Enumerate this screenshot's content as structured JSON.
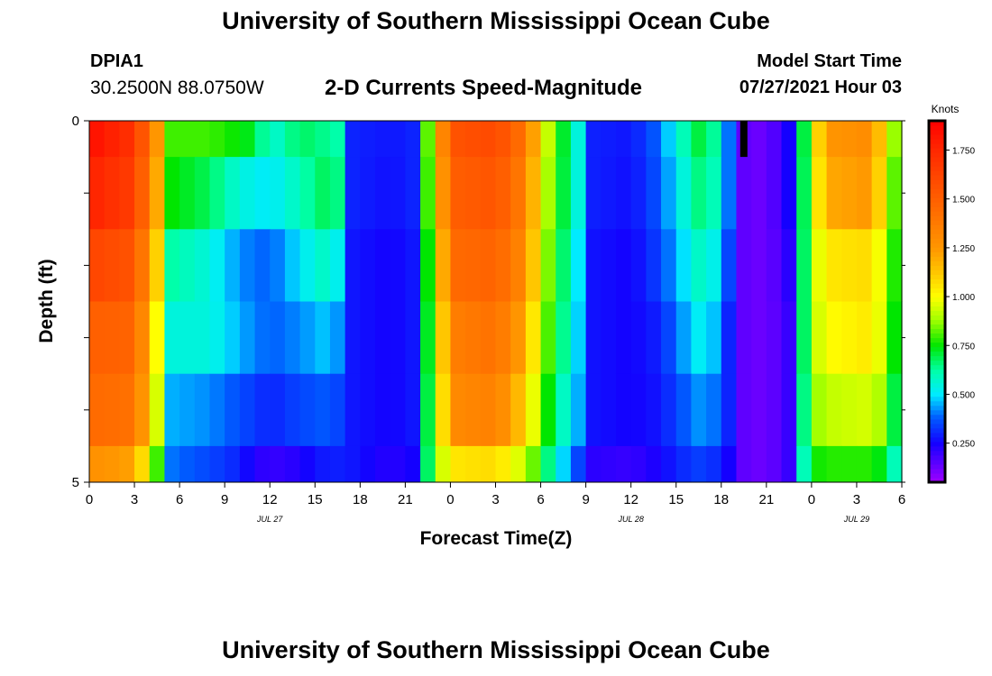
{
  "header": {
    "title": "University of Southern Mississippi Ocean Cube",
    "station_id": "DPIA1",
    "coords": "30.2500N  88.0750W",
    "subtitle": "2-D Currents Speed-Magnitude",
    "start_label": "Model Start Time",
    "start_value": "07/27/2021 Hour 03"
  },
  "footer": {
    "title": "University of Southern Mississippi Ocean Cube"
  },
  "chart_data": {
    "type": "heatmap",
    "title": "2-D Currents Speed-Magnitude",
    "xlabel": "Forecast Time(Z)",
    "ylabel": "Depth (ft)",
    "x_unit": "hours from Jul 27 00Z",
    "x_range": [
      0,
      54
    ],
    "y_range": [
      0,
      5
    ],
    "x_ticks": [
      0,
      3,
      6,
      9,
      12,
      15,
      18,
      21,
      24,
      27,
      30,
      33,
      36,
      39,
      42,
      45,
      48,
      51,
      54
    ],
    "x_tick_labels": [
      "0",
      "3",
      "6",
      "9",
      "12",
      "15",
      "18",
      "21",
      "0",
      "3",
      "6",
      "9",
      "12",
      "15",
      "18",
      "21",
      "0",
      "3",
      "6"
    ],
    "y_ticks": [
      0,
      5
    ],
    "date_labels": [
      {
        "hour": 12,
        "label": "JUL 27"
      },
      {
        "hour": 36,
        "label": "JUL 28"
      },
      {
        "hour": 51,
        "label": "JUL 29"
      }
    ],
    "colorbar": {
      "label": "Knots",
      "range": [
        0.05,
        1.9
      ],
      "ticks": [
        "0.250",
        "0.500",
        "0.750",
        "1.000",
        "1.250",
        "1.500",
        "1.750"
      ],
      "tick_values": [
        0.25,
        0.5,
        0.75,
        1.0,
        1.25,
        1.5,
        1.75
      ]
    },
    "rows": [
      {
        "depth": [
          0.0,
          0.5
        ],
        "key": [
          [
            0,
            1.85
          ],
          [
            3,
            1.7
          ],
          [
            4.5,
            1.25
          ],
          [
            5.5,
            0.8
          ],
          [
            8,
            0.8
          ],
          [
            11,
            0.72
          ],
          [
            12,
            0.55
          ],
          [
            14,
            0.68
          ],
          [
            16.5,
            0.62
          ],
          [
            17.5,
            0.3
          ],
          [
            20,
            0.28
          ],
          [
            21.5,
            0.3
          ],
          [
            22,
            0.55
          ],
          [
            23,
            1.1
          ],
          [
            24,
            1.55
          ],
          [
            27,
            1.6
          ],
          [
            29,
            1.4
          ],
          [
            30,
            1.05
          ],
          [
            31,
            0.8
          ],
          [
            32.5,
            0.55
          ],
          [
            33,
            0.3
          ],
          [
            36,
            0.28
          ],
          [
            38,
            0.4
          ],
          [
            39,
            0.55
          ],
          [
            41,
            0.75
          ],
          [
            42.5,
            0.4
          ],
          [
            43,
            0.15
          ],
          [
            45,
            0.12
          ],
          [
            46.5,
            0.25
          ],
          [
            47,
            0.45
          ],
          [
            48,
            0.95
          ],
          [
            49,
            1.25
          ],
          [
            52,
            1.3
          ],
          [
            53,
            1.0
          ],
          [
            54,
            0.75
          ]
        ]
      },
      {
        "depth": [
          0.5,
          1.5
        ],
        "key": [
          [
            0,
            1.78
          ],
          [
            3,
            1.65
          ],
          [
            4.5,
            1.2
          ],
          [
            5.5,
            0.75
          ],
          [
            8,
            0.68
          ],
          [
            10,
            0.55
          ],
          [
            12,
            0.5
          ],
          [
            14,
            0.6
          ],
          [
            16,
            0.7
          ],
          [
            17,
            0.6
          ],
          [
            17.5,
            0.3
          ],
          [
            20,
            0.27
          ],
          [
            21.5,
            0.3
          ],
          [
            22,
            0.55
          ],
          [
            23,
            1.05
          ],
          [
            24,
            1.5
          ],
          [
            27,
            1.55
          ],
          [
            29,
            1.35
          ],
          [
            30,
            1.0
          ],
          [
            31,
            0.78
          ],
          [
            32.5,
            0.55
          ],
          [
            33,
            0.3
          ],
          [
            36,
            0.27
          ],
          [
            38,
            0.38
          ],
          [
            39,
            0.5
          ],
          [
            41,
            0.7
          ],
          [
            42.5,
            0.4
          ],
          [
            43,
            0.15
          ],
          [
            45,
            0.12
          ],
          [
            46.5,
            0.25
          ],
          [
            47,
            0.45
          ],
          [
            48,
            0.92
          ],
          [
            49,
            1.2
          ],
          [
            52,
            1.25
          ],
          [
            53,
            0.95
          ],
          [
            54,
            0.7
          ]
        ]
      },
      {
        "depth": [
          1.5,
          2.5
        ],
        "key": [
          [
            0,
            1.62
          ],
          [
            3,
            1.55
          ],
          [
            4.5,
            1.1
          ],
          [
            5.5,
            0.62
          ],
          [
            8,
            0.55
          ],
          [
            10,
            0.42
          ],
          [
            12,
            0.38
          ],
          [
            14,
            0.5
          ],
          [
            16,
            0.6
          ],
          [
            17,
            0.45
          ],
          [
            17.5,
            0.28
          ],
          [
            20,
            0.25
          ],
          [
            21.5,
            0.28
          ],
          [
            22,
            0.55
          ],
          [
            23,
            0.95
          ],
          [
            24,
            1.45
          ],
          [
            27,
            1.48
          ],
          [
            29,
            1.3
          ],
          [
            30,
            0.95
          ],
          [
            31,
            0.75
          ],
          [
            32.5,
            0.5
          ],
          [
            33,
            0.28
          ],
          [
            36,
            0.25
          ],
          [
            38,
            0.35
          ],
          [
            39,
            0.45
          ],
          [
            41,
            0.62
          ],
          [
            42.5,
            0.35
          ],
          [
            43,
            0.15
          ],
          [
            45,
            0.12
          ],
          [
            46.5,
            0.22
          ],
          [
            47,
            0.45
          ],
          [
            48,
            0.9
          ],
          [
            49,
            1.05
          ],
          [
            52,
            1.08
          ],
          [
            53,
            0.9
          ],
          [
            54,
            0.65
          ]
        ]
      },
      {
        "depth": [
          2.5,
          3.5
        ],
        "key": [
          [
            0,
            1.5
          ],
          [
            3,
            1.48
          ],
          [
            4.5,
            1.0
          ],
          [
            5.5,
            0.55
          ],
          [
            8,
            0.55
          ],
          [
            10,
            0.45
          ],
          [
            12,
            0.38
          ],
          [
            14,
            0.42
          ],
          [
            16,
            0.48
          ],
          [
            17,
            0.38
          ],
          [
            17.5,
            0.28
          ],
          [
            20,
            0.25
          ],
          [
            21.5,
            0.28
          ],
          [
            22,
            0.55
          ],
          [
            23,
            0.9
          ],
          [
            24,
            1.35
          ],
          [
            27,
            1.42
          ],
          [
            29,
            1.2
          ],
          [
            30,
            0.9
          ],
          [
            31,
            0.72
          ],
          [
            32.5,
            0.48
          ],
          [
            33,
            0.28
          ],
          [
            36,
            0.25
          ],
          [
            38,
            0.3
          ],
          [
            39,
            0.4
          ],
          [
            41,
            0.55
          ],
          [
            42.5,
            0.3
          ],
          [
            43,
            0.15
          ],
          [
            45,
            0.12
          ],
          [
            46.5,
            0.2
          ],
          [
            47,
            0.45
          ],
          [
            48,
            0.9
          ],
          [
            49,
            1.0
          ],
          [
            52,
            1.05
          ],
          [
            53,
            0.9
          ],
          [
            54,
            0.6
          ]
        ]
      },
      {
        "depth": [
          3.5,
          4.5
        ],
        "key": [
          [
            0,
            1.45
          ],
          [
            3,
            1.42
          ],
          [
            4.5,
            0.95
          ],
          [
            5.5,
            0.45
          ],
          [
            8,
            0.42
          ],
          [
            10,
            0.36
          ],
          [
            12,
            0.3
          ],
          [
            14,
            0.35
          ],
          [
            16,
            0.38
          ],
          [
            17,
            0.32
          ],
          [
            17.5,
            0.28
          ],
          [
            20,
            0.25
          ],
          [
            21.5,
            0.28
          ],
          [
            22,
            0.55
          ],
          [
            23,
            0.85
          ],
          [
            24,
            1.3
          ],
          [
            27,
            1.35
          ],
          [
            29,
            1.1
          ],
          [
            30,
            0.85
          ],
          [
            31,
            0.65
          ],
          [
            32.5,
            0.45
          ],
          [
            33,
            0.28
          ],
          [
            36,
            0.25
          ],
          [
            38,
            0.28
          ],
          [
            39,
            0.35
          ],
          [
            41,
            0.45
          ],
          [
            42.5,
            0.3
          ],
          [
            43,
            0.15
          ],
          [
            45,
            0.12
          ],
          [
            46.5,
            0.2
          ],
          [
            47,
            0.45
          ],
          [
            48,
            0.85
          ],
          [
            49,
            0.92
          ],
          [
            52,
            0.95
          ],
          [
            53,
            0.85
          ],
          [
            54,
            0.55
          ]
        ]
      },
      {
        "depth": [
          4.5,
          5.0
        ],
        "key": [
          [
            0,
            1.28
          ],
          [
            3,
            1.22
          ],
          [
            4.5,
            0.8
          ],
          [
            5.5,
            0.4
          ],
          [
            8,
            0.35
          ],
          [
            10,
            0.3
          ],
          [
            11,
            0.22
          ],
          [
            13,
            0.2
          ],
          [
            14,
            0.24
          ],
          [
            16,
            0.3
          ],
          [
            17.5,
            0.28
          ],
          [
            20,
            0.22
          ],
          [
            21.5,
            0.25
          ],
          [
            22,
            0.5
          ],
          [
            23,
            0.85
          ],
          [
            24,
            1.05
          ],
          [
            27,
            1.08
          ],
          [
            29,
            0.92
          ],
          [
            30,
            0.75
          ],
          [
            31,
            0.55
          ],
          [
            32.5,
            0.35
          ],
          [
            33,
            0.22
          ],
          [
            36,
            0.2
          ],
          [
            38,
            0.25
          ],
          [
            39,
            0.3
          ],
          [
            41,
            0.35
          ],
          [
            42.5,
            0.25
          ],
          [
            43,
            0.15
          ],
          [
            45,
            0.12
          ],
          [
            46.5,
            0.2
          ],
          [
            47,
            0.45
          ],
          [
            48,
            0.75
          ],
          [
            49,
            0.78
          ],
          [
            52,
            0.78
          ],
          [
            53,
            0.7
          ],
          [
            54,
            0.5
          ]
        ]
      }
    ],
    "no_data_marker": {
      "hour": 43.5,
      "depth": [
        0,
        0.5
      ]
    }
  }
}
